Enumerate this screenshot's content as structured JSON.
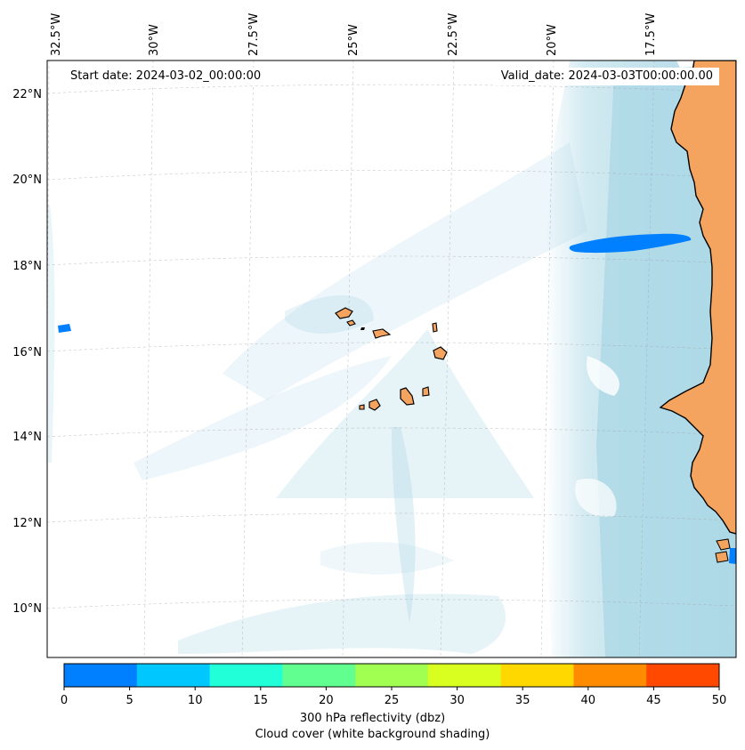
{
  "map": {
    "title_left": "Start date: 2024-03-02_00:00:00",
    "title_right": "Valid_date: 2024-03-03T00:00:00.00",
    "lon_labels": [
      "32.5°W",
      "30°W",
      "27.5°W",
      "25°W",
      "22.5°W",
      "20°W",
      "17.5°W"
    ],
    "lat_labels": [
      "22°N",
      "20°N",
      "18°N",
      "16°N",
      "14°N",
      "12°N",
      "10°N"
    ],
    "layers": [
      "cloud-cover-shading",
      "reflectivity-contours",
      "coastlines",
      "land",
      "gridlines"
    ]
  },
  "colorbar": {
    "ticks": [
      "0",
      "5",
      "10",
      "15",
      "20",
      "25",
      "30",
      "35",
      "40",
      "45",
      "50"
    ],
    "colors": [
      "#0080ff",
      "#00c8ff",
      "#20ffd8",
      "#60ff90",
      "#a0ff50",
      "#d8ff20",
      "#ffd800",
      "#ff8c00",
      "#ff4800"
    ],
    "label_line1": "300 hPa reflectivity (dbz)",
    "label_line2": "Cloud cover (white background shading)"
  },
  "colors": {
    "land": "#f5a460",
    "cloud": "#add8e6",
    "reflectivity_low": "#0080ff"
  }
}
